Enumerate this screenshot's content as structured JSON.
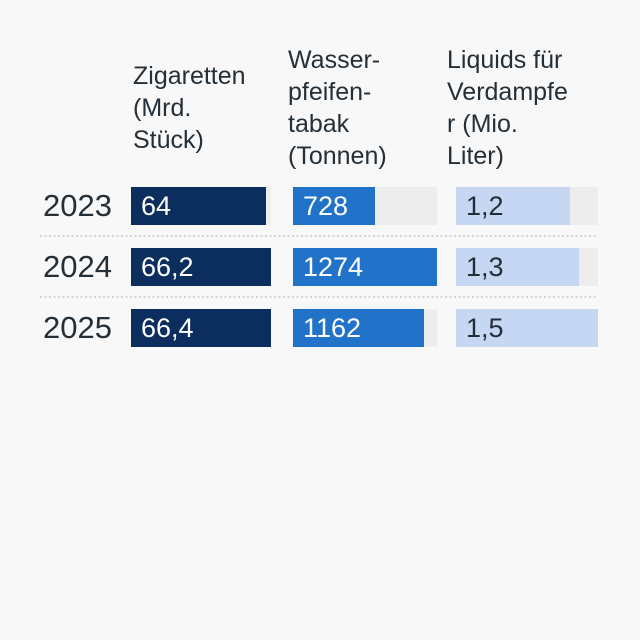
{
  "page": {
    "background": "#f8f8f8",
    "text_color": "#242f38",
    "separator_color": "#d4d4d4"
  },
  "chart_data": {
    "type": "bar",
    "orientation": "horizontal",
    "title": "",
    "grid": false,
    "legend_position": "none",
    "track_color": "#ededee",
    "categories": [
      "2023",
      "2024",
      "2025"
    ],
    "series": [
      {
        "name": "Zigaretten (Mrd. Stück)",
        "header_lines": [
          "Zigaretten",
          "(Mrd.",
          "Stück)"
        ],
        "values": [
          64,
          66.2,
          66.4
        ],
        "value_labels": [
          "64",
          "66,2",
          "66,4"
        ],
        "scale_max": 66.4,
        "bar_color": "#0c2e5f",
        "value_label_color": "#ffffff"
      },
      {
        "name": "Wasserpfeifentabak (Tonnen)",
        "header_lines": [
          "Wasser-",
          "pfeifen-",
          "tabak",
          "(Tonnen)"
        ],
        "values": [
          728,
          1274,
          1162
        ],
        "value_labels": [
          "728",
          "1274",
          "1162"
        ],
        "scale_max": 1274,
        "bar_color": "#2173c9",
        "value_label_color": "#ffffff"
      },
      {
        "name": "Liquids für Verdampfer (Mio. Liter)",
        "header_lines": [
          "Liquids für",
          "Verdampfe",
          "r (Mio.",
          "Liter)"
        ],
        "values": [
          1.2,
          1.3,
          1.5
        ],
        "value_labels": [
          "1,2",
          "1,3",
          "1,5"
        ],
        "scale_max": 1.5,
        "bar_color": "#c5d7f2",
        "value_label_color": "#232e37"
      }
    ]
  }
}
